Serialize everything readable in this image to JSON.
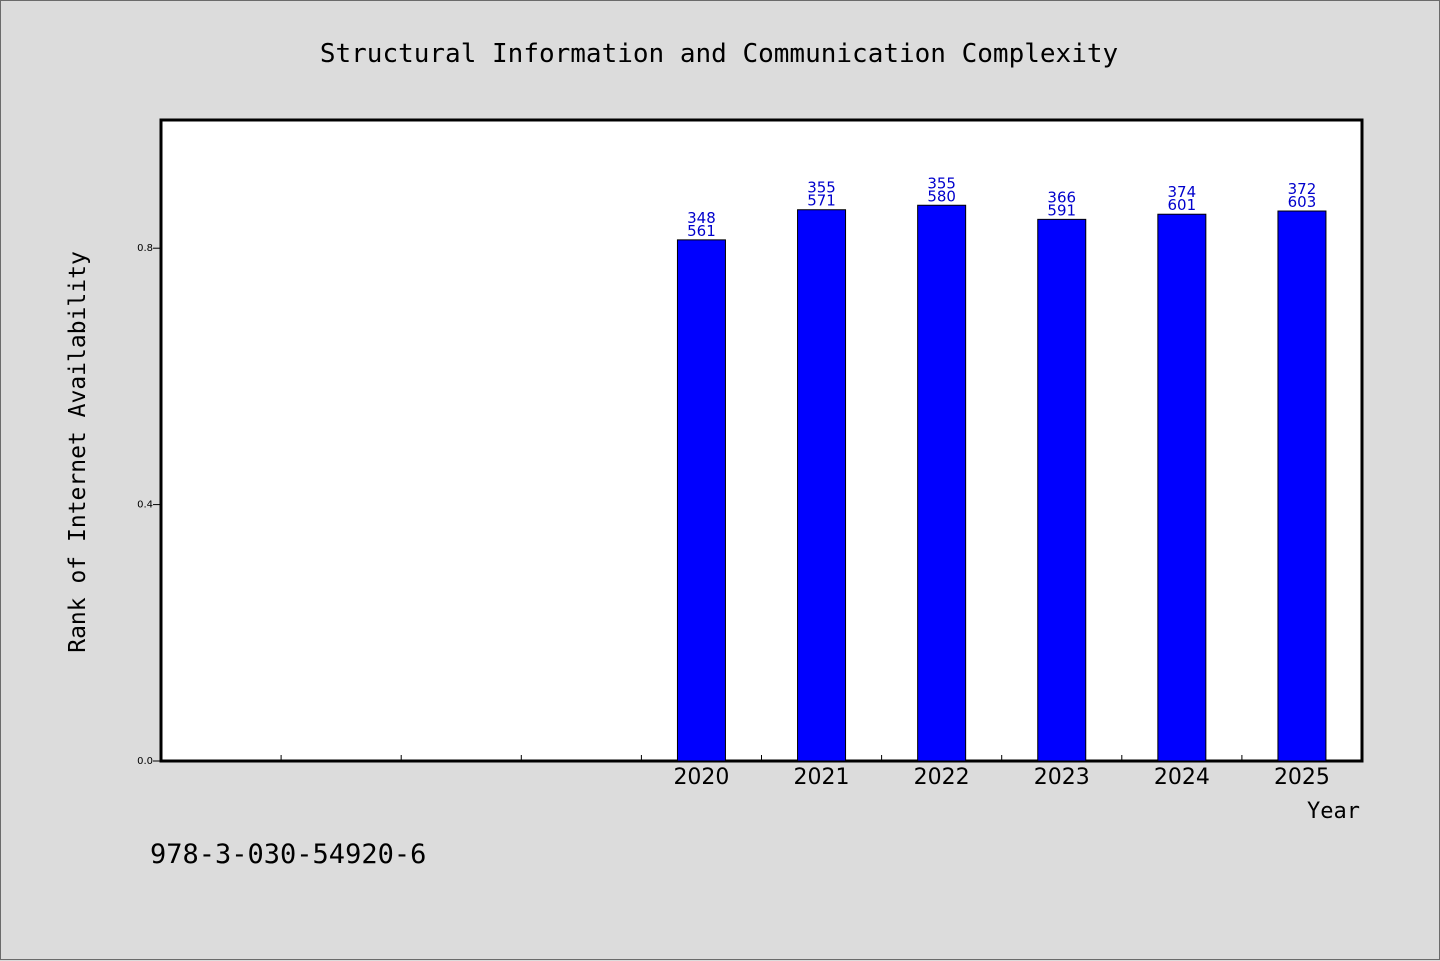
{
  "chart_data": {
    "type": "bar",
    "title": "Structural Information and Communication Complexity",
    "xlabel": "Year",
    "ylabel": "Rank of Internet Availability",
    "categories": [
      "",
      "",
      "",
      "",
      "2020",
      "2021",
      "2022",
      "2023",
      "2024",
      "2025"
    ],
    "values": [
      null,
      null,
      null,
      null,
      0.813,
      0.86,
      0.867,
      0.845,
      0.853,
      0.858
    ],
    "data_labels": [
      null,
      null,
      null,
      null,
      [
        "348",
        "561"
      ],
      [
        "355",
        "571"
      ],
      [
        "355",
        "580"
      ],
      [
        "366",
        "591"
      ],
      [
        "374",
        "601"
      ],
      [
        "372",
        "603"
      ]
    ],
    "ylim": [
      0,
      1
    ],
    "yticks": [
      "0.0",
      "0.4",
      "0.8"
    ],
    "ytick_values": [
      0,
      0.4,
      0.8
    ],
    "grid": false,
    "bar_color": "#0000ff",
    "label_color": "#0000cc"
  },
  "footer": {
    "isbn": "978-3-030-54920-6"
  }
}
